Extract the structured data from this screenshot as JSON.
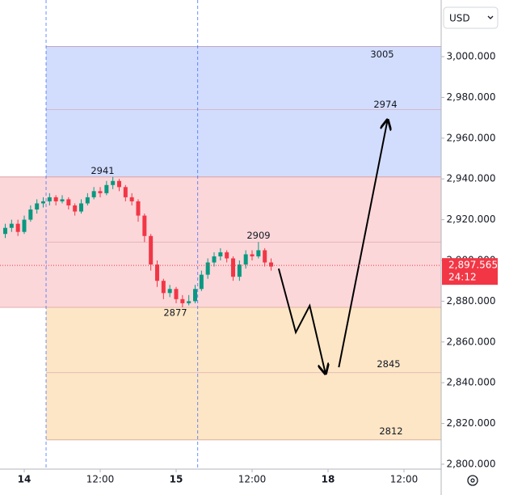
{
  "chart_data": {
    "type": "candlestick",
    "currency": "USD",
    "x": [
      -3,
      -2,
      -1,
      0,
      1,
      2,
      3,
      4,
      5,
      6,
      7,
      8,
      9,
      10,
      11,
      12,
      13,
      14,
      15,
      16,
      17,
      18,
      19,
      20,
      21,
      22,
      23,
      24,
      25,
      26,
      27,
      28,
      29,
      30,
      31,
      32,
      33,
      34,
      35,
      36,
      37,
      38,
      39
    ],
    "open": [
      2913,
      2916,
      2918,
      2914,
      2920,
      2925,
      2928,
      2929,
      2931,
      2929,
      2930,
      2927,
      2924,
      2928,
      2931,
      2934,
      2933,
      2937,
      2939,
      2936,
      2931,
      2929,
      2922,
      2912,
      2898,
      2890,
      2884,
      2886,
      2881,
      2879,
      2880,
      2886,
      2893,
      2899,
      2902,
      2904,
      2901,
      2892,
      2898,
      2903,
      2902,
      2905,
      2899
    ],
    "high": [
      2918,
      2920,
      2920,
      2922,
      2927,
      2930,
      2931,
      2933,
      2932,
      2932,
      2931,
      2928,
      2930,
      2933,
      2936,
      2936,
      2939,
      2941,
      2940,
      2937,
      2933,
      2930,
      2923,
      2913,
      2900,
      2891,
      2888,
      2887,
      2883,
      2883,
      2888,
      2895,
      2901,
      2904,
      2906,
      2905,
      2902,
      2900,
      2905,
      2905,
      2909,
      2906,
      2901
    ],
    "low": [
      2911,
      2914,
      2912,
      2913,
      2919,
      2923,
      2926,
      2927,
      2927,
      2928,
      2925,
      2922,
      2923,
      2927,
      2930,
      2931,
      2932,
      2935,
      2934,
      2929,
      2927,
      2919,
      2909,
      2895,
      2887,
      2881,
      2882,
      2879,
      2877,
      2878,
      2879,
      2885,
      2891,
      2897,
      2900,
      2899,
      2890,
      2890,
      2896,
      2900,
      2901,
      2897,
      2895
    ],
    "close": [
      2916,
      2918,
      2914,
      2920,
      2925,
      2928,
      2929,
      2931,
      2929,
      2930,
      2927,
      2924,
      2928,
      2931,
      2934,
      2933,
      2937,
      2939,
      2936,
      2931,
      2929,
      2922,
      2912,
      2898,
      2890,
      2884,
      2886,
      2881,
      2879,
      2880,
      2886,
      2893,
      2899,
      2902,
      2904,
      2901,
      2892,
      2898,
      2903,
      2902,
      2905,
      2899,
      2897
    ],
    "up_color": "#089981",
    "down_color": "#f23645",
    "xlim": [
      -3.83,
      65.87
    ],
    "xticks": [
      {
        "value": 0,
        "label": "14"
      },
      {
        "value": 12,
        "label": "12:00"
      },
      {
        "value": 24,
        "label": "15"
      },
      {
        "value": 36,
        "label": "12:00"
      },
      {
        "value": 48,
        "label": "18"
      },
      {
        "value": 60,
        "label": "12:00"
      }
    ],
    "ylim": [
      2797.6,
      3027.8
    ],
    "yticks": [
      {
        "value": 2800,
        "label": "2,800.000"
      },
      {
        "value": 2820,
        "label": "2,820.000"
      },
      {
        "value": 2840,
        "label": "2,840.000"
      },
      {
        "value": 2860,
        "label": "2,860.000"
      },
      {
        "value": 2880,
        "label": "2,880.000"
      },
      {
        "value": 2900,
        "label": "2,900.000"
      },
      {
        "value": 2920,
        "label": "2,920.000"
      },
      {
        "value": 2940,
        "label": "2,940.000"
      },
      {
        "value": 2960,
        "label": "2,960.000"
      },
      {
        "value": 2980,
        "label": "2,980.000"
      },
      {
        "value": 3000,
        "label": "3,000.000"
      }
    ],
    "vlines": [
      3.45,
      27.4
    ],
    "zones": [
      {
        "from": 2941,
        "to": 3005,
        "start": 3.45,
        "color": "#d2ddfd",
        "edge": "#9fb4ea"
      },
      {
        "from": 2877,
        "to": 2941,
        "start": -3.83,
        "color": "#fbd7da",
        "edge": "#efb3b8"
      },
      {
        "from": 2812,
        "to": 2877,
        "start": 3.45,
        "color": "#fde6c6",
        "edge": "#f2cf9a"
      }
    ],
    "levels": [
      3005,
      2974,
      2941,
      2909,
      2877,
      2845,
      2812
    ],
    "arrows": [
      {
        "x": [
          40.2,
          42.9,
          45.1,
          47.6
        ],
        "y": [
          2896,
          2864.7,
          2877.8,
          2844.4
        ]
      },
      {
        "x": [
          49.7,
          57.4
        ],
        "y": [
          2847.6,
          2969
        ]
      }
    ],
    "last_price": {
      "value": 2897.565,
      "label": "2,897.565",
      "countdown": "24:12"
    }
  }
}
